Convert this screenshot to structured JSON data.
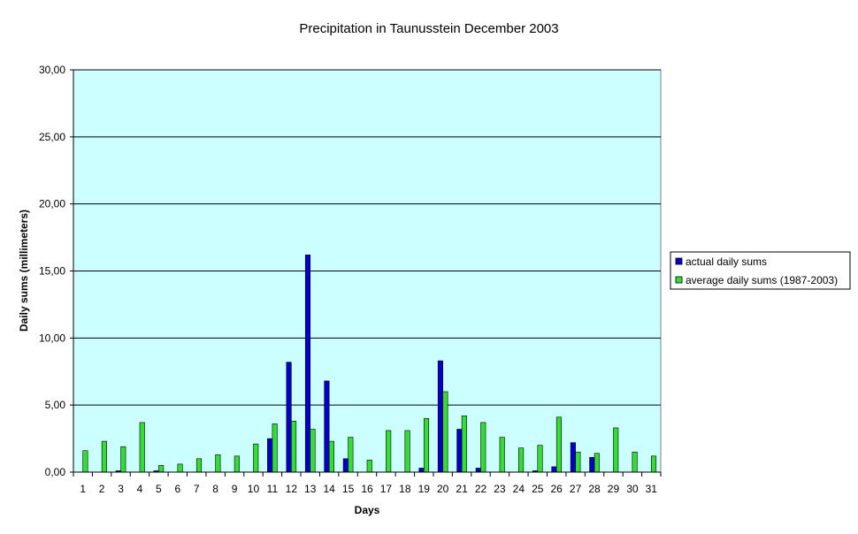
{
  "chart_data": {
    "type": "bar",
    "title": "Precipitation in Taunusstein  December  2003",
    "xlabel": "Days",
    "ylabel": "Daily sums  (millimeters)",
    "ylim": [
      0,
      30
    ],
    "yticks": [
      0,
      5,
      10,
      15,
      20,
      25,
      30
    ],
    "ytick_labels": [
      "0,00",
      "5,00",
      "10,00",
      "15,00",
      "20,00",
      "25,00",
      "30,00"
    ],
    "grid": true,
    "legend_position": "right",
    "categories": [
      "1",
      "2",
      "3",
      "4",
      "5",
      "6",
      "7",
      "8",
      "9",
      "10",
      "11",
      "12",
      "13",
      "14",
      "15",
      "16",
      "17",
      "18",
      "19",
      "20",
      "21",
      "22",
      "23",
      "24",
      "25",
      "26",
      "27",
      "28",
      "29",
      "30",
      "31"
    ],
    "series": [
      {
        "name": "actual daily sums",
        "color": "#0000cc",
        "values": [
          0,
          0,
          0.1,
          0,
          0.1,
          0,
          0,
          0,
          0,
          0,
          2.5,
          8.2,
          16.2,
          6.8,
          1.0,
          0,
          0,
          0,
          0.3,
          8.3,
          3.2,
          0.3,
          0,
          0,
          0.1,
          0.4,
          2.2,
          1.1,
          0,
          0,
          0
        ]
      },
      {
        "name": "average daily sums (1987-2003)",
        "color": "#33dd33",
        "values": [
          1.6,
          2.3,
          1.9,
          3.7,
          0.5,
          0.6,
          1.0,
          1.3,
          1.2,
          2.1,
          3.6,
          3.8,
          3.2,
          2.3,
          2.6,
          0.9,
          3.1,
          3.1,
          4.0,
          6.0,
          4.2,
          3.7,
          2.6,
          1.8,
          2.0,
          4.1,
          1.5,
          1.4,
          3.3,
          1.5,
          1.2
        ]
      }
    ],
    "colors": {
      "plot_background": "#ccffff",
      "gridline": "#000000",
      "bar_outline": "#000000"
    }
  }
}
